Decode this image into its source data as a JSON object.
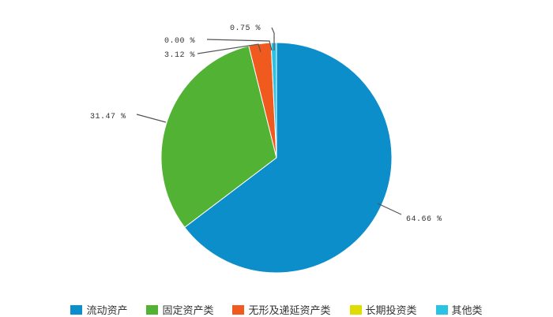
{
  "chart_data": {
    "type": "pie",
    "start_angle": "top, clockwise",
    "slices": [
      {
        "name": "流动资产",
        "value": 64.66,
        "label": "64.66 %",
        "color": "#0c8ecb"
      },
      {
        "name": "固定资产类",
        "value": 31.47,
        "label": "31.47 %",
        "color": "#52b234"
      },
      {
        "name": "无形及递延资产类",
        "value": 3.12,
        "label": "3.12 %",
        "color": "#f05a1e"
      },
      {
        "name": "长期投资类",
        "value": 0.0,
        "label": "0.00 %",
        "color": "#dedc00"
      },
      {
        "name": "其他类",
        "value": 0.75,
        "label": "0.75 %",
        "color": "#2bc3e4"
      }
    ],
    "legend_position": "bottom"
  }
}
